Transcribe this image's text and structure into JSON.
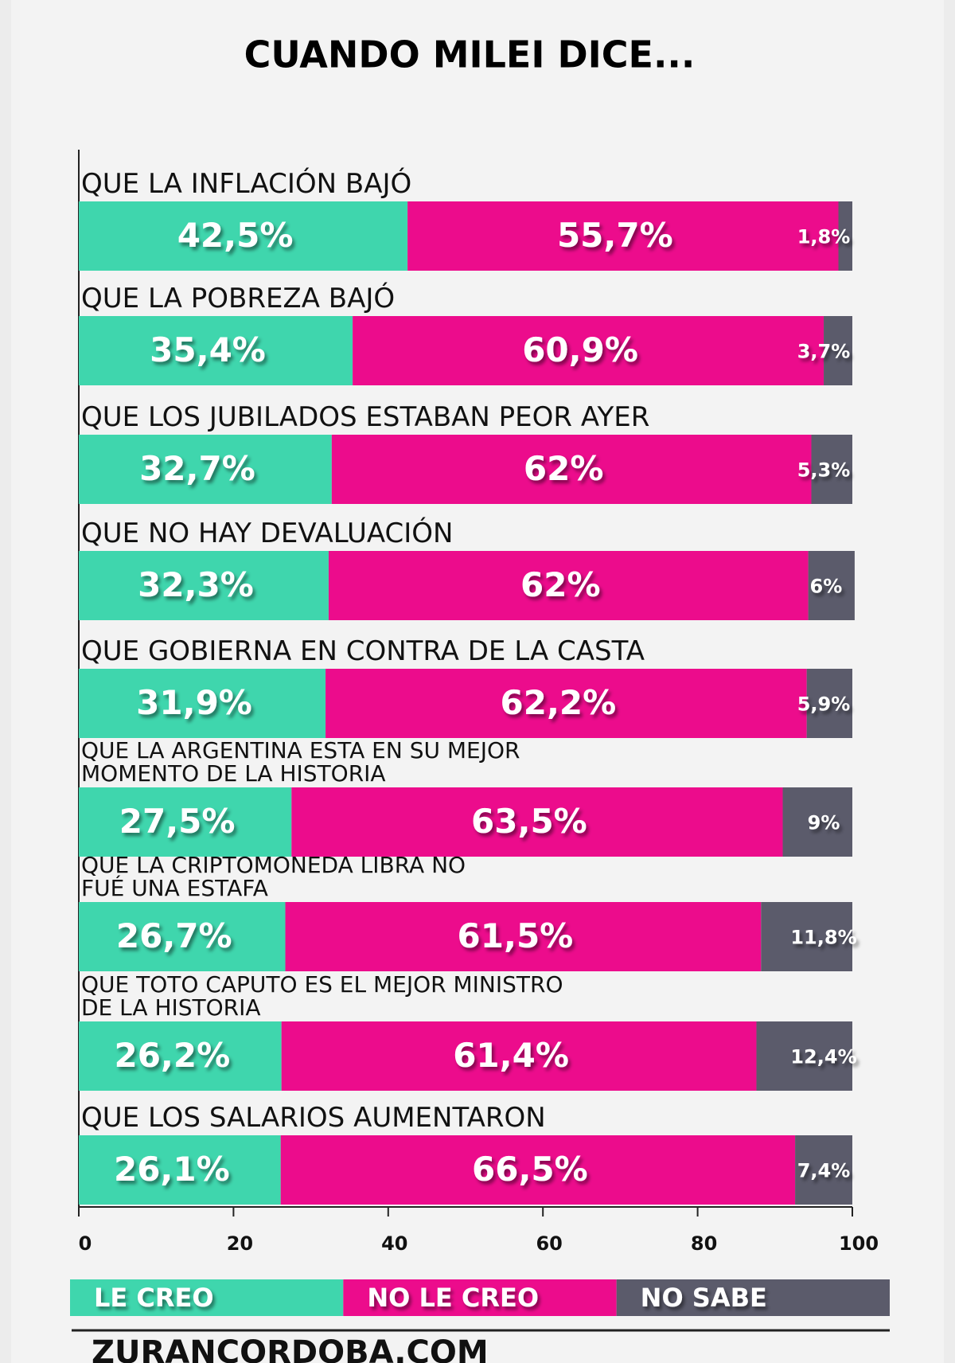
{
  "chart_data": {
    "type": "stacked-bar-horizontal",
    "title": "CUANDO MILEI DICE...",
    "categories": [
      "QUE LA INFLACIÓN BAJÓ",
      "QUE LA POBREZA BAJÓ",
      "QUE LOS JUBILADOS ESTABAN PEOR AYER",
      "QUE NO HAY DEVALUACIÓN",
      "QUE GOBIERNA EN CONTRA DE LA CASTA",
      "QUE LA ARGENTINA ESTA EN SU MEJOR\nMOMENTO DE LA HISTORIA",
      "QUE LA CRIPTOMONEDA LIBRA NO\nFUÉ UNA ESTAFA",
      "QUE TOTO CAPUTO ES EL MEJOR MINISTRO\nDE LA HISTORIA",
      "QUE LOS SALARIOS AUMENTARON"
    ],
    "series": [
      {
        "name": "LE CREO",
        "color": "#3fd6ad",
        "values": [
          42.5,
          35.4,
          32.7,
          32.3,
          31.9,
          27.5,
          26.7,
          26.2,
          26.1
        ],
        "value_labels": [
          "42,5%",
          "35,4%",
          "32,7%",
          "32,3%",
          "31,9%",
          "27,5%",
          "26,7%",
          "26,2%",
          "26,1%"
        ]
      },
      {
        "name": "NO LE CREO",
        "color": "#ec0c8c",
        "values": [
          55.7,
          60.9,
          62,
          62,
          62.2,
          63.5,
          61.5,
          61.4,
          66.5
        ],
        "value_labels": [
          "55,7%",
          "60,9%",
          "62%",
          "62%",
          "62,2%",
          "63,5%",
          "61,5%",
          "61,4%",
          "66,5%"
        ]
      },
      {
        "name": "NO SABE",
        "color": "#5b5b6b",
        "values": [
          1.8,
          3.7,
          5.3,
          6,
          5.9,
          9,
          11.8,
          12.4,
          7.4
        ],
        "value_labels": [
          "1,8%",
          "3,7%",
          "5,3%",
          "6%",
          "5,9%",
          "9%",
          "11,8%",
          "12,4%",
          "7,4%"
        ]
      }
    ],
    "xlim": [
      0,
      100
    ],
    "xticks": [
      0,
      20,
      40,
      60,
      80,
      100
    ],
    "source": "ZURANCORDOBA.COM"
  }
}
